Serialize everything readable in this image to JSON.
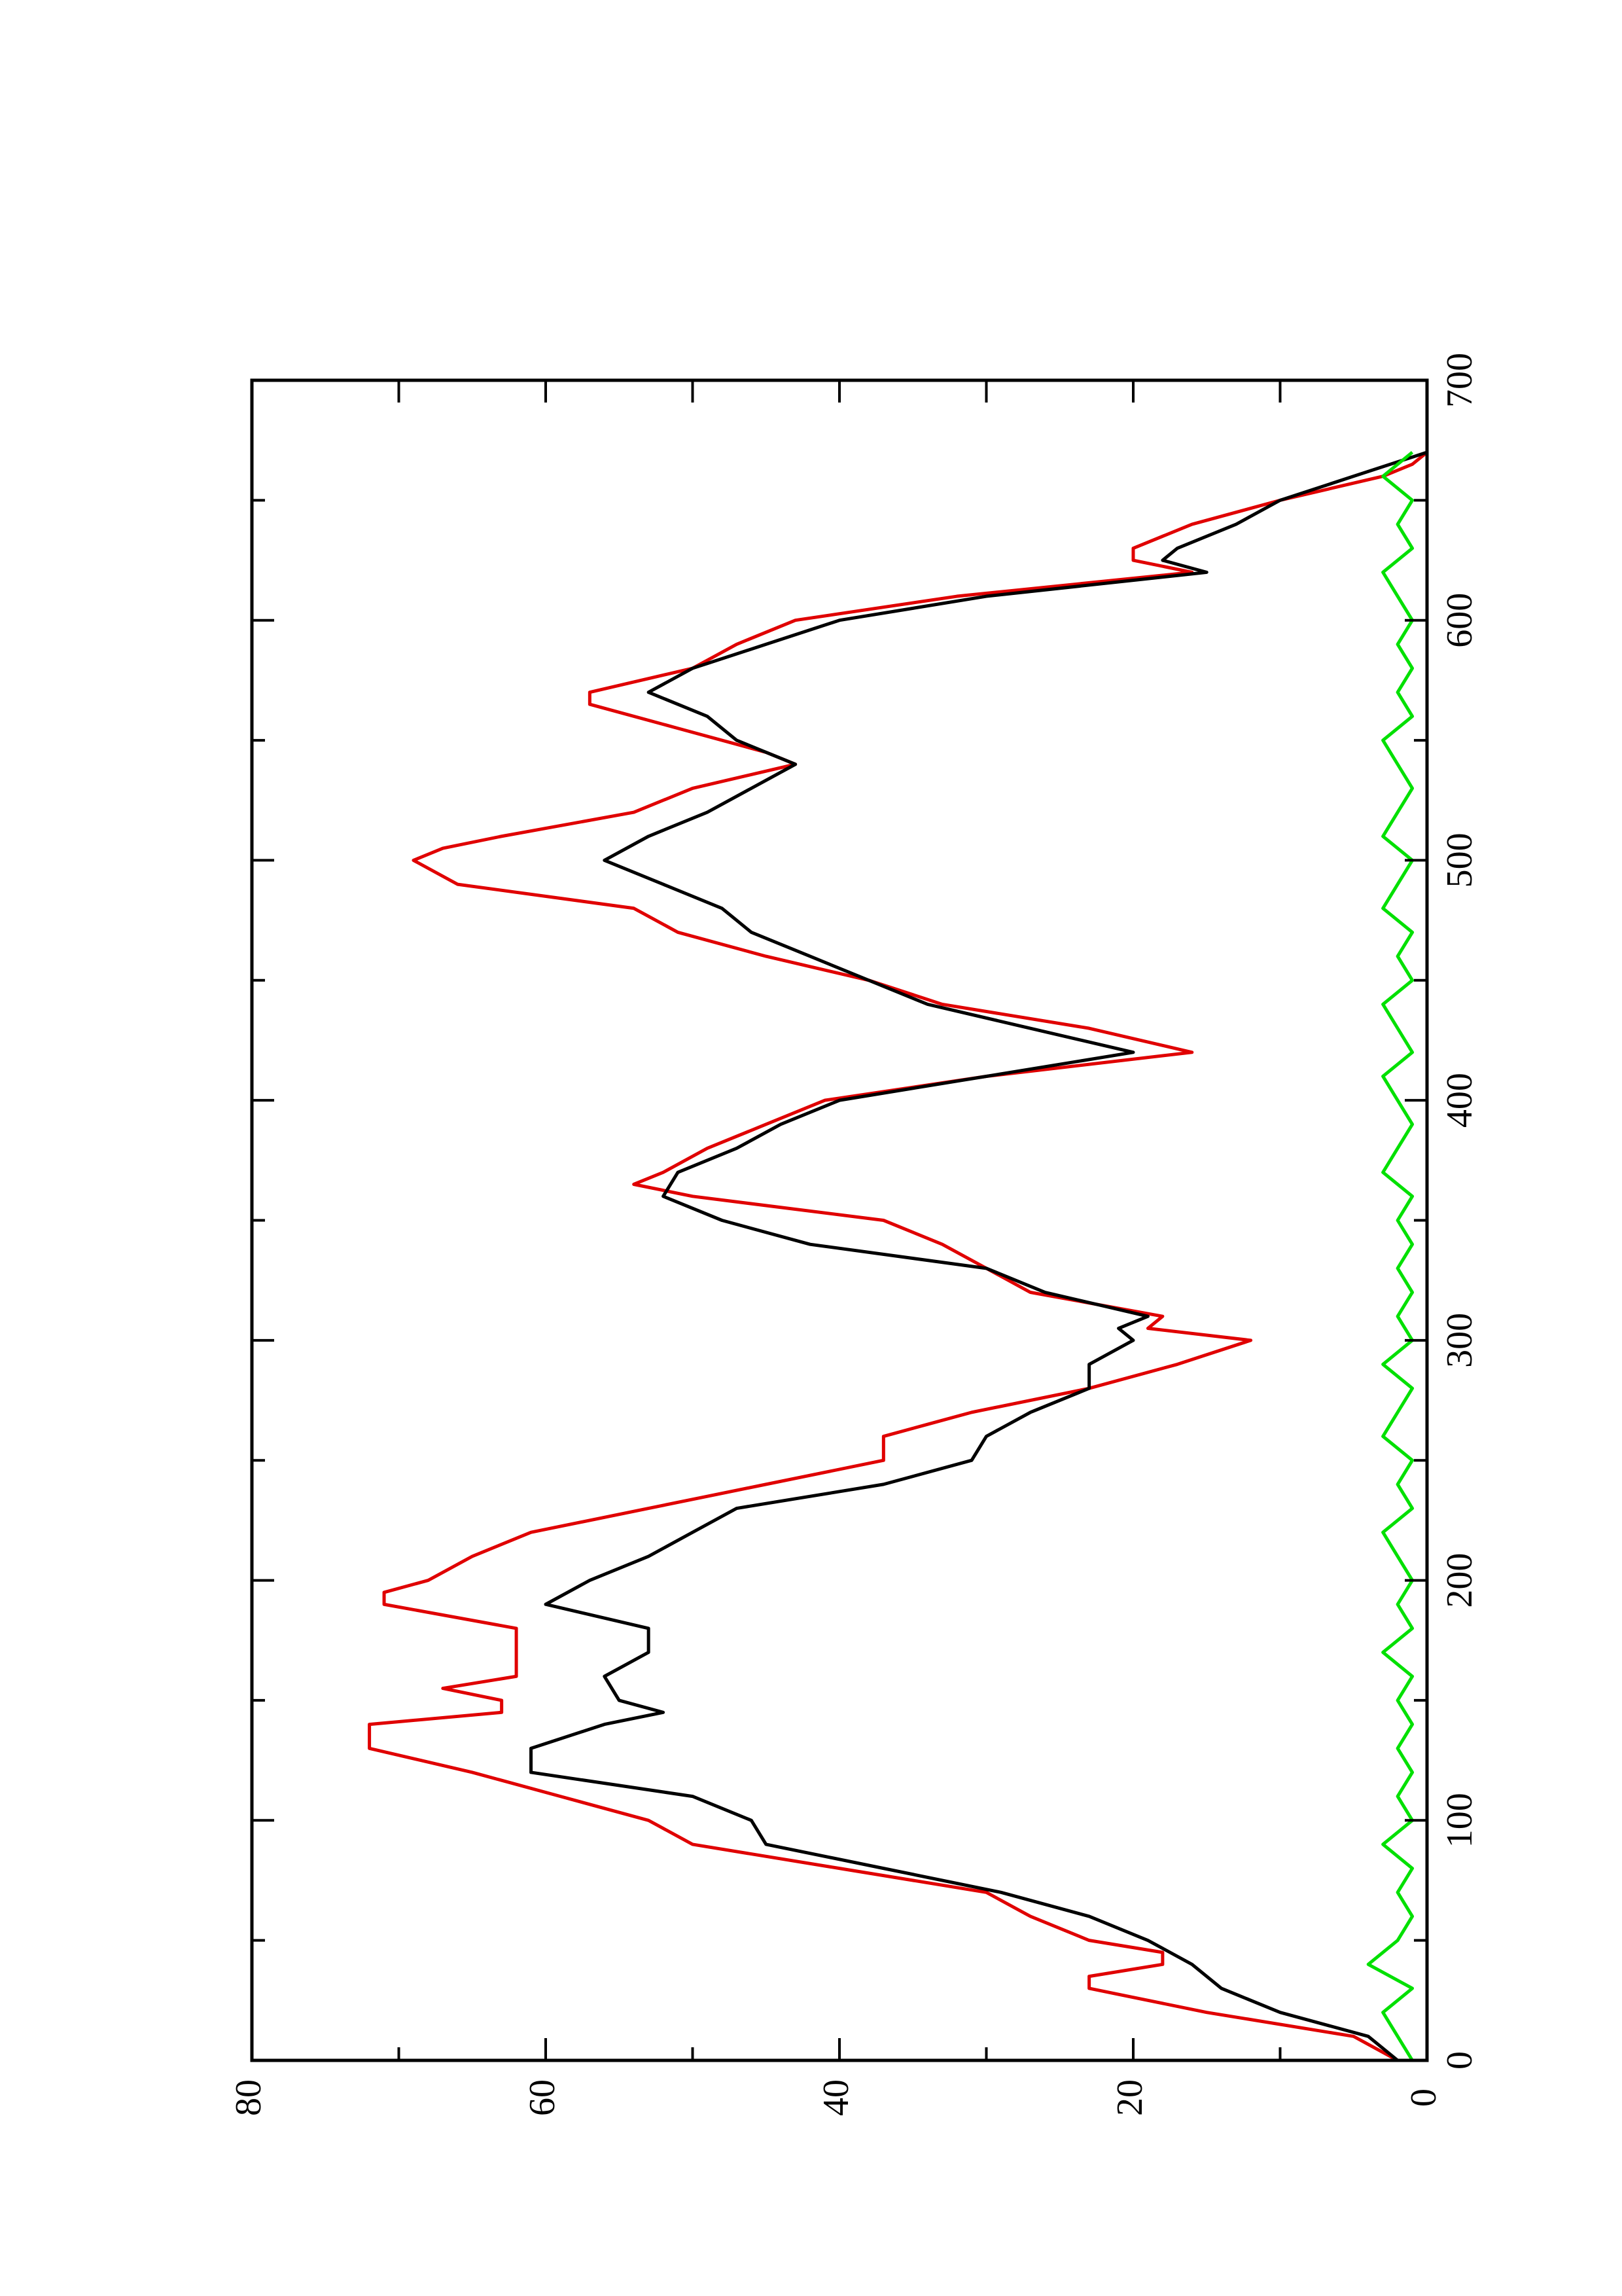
{
  "chart_data": {
    "type": "line",
    "xlim": [
      0,
      700
    ],
    "xticks": [
      0,
      100,
      200,
      300,
      400,
      500,
      600,
      700
    ],
    "ylim": [
      0,
      80
    ],
    "yticks": [
      0,
      20,
      40,
      60,
      80
    ],
    "rotated": true,
    "series": [
      {
        "color": "#e00000",
        "x": [
          0,
          10,
          20,
          30,
          35,
          40,
          45,
          50,
          60,
          70,
          80,
          90,
          100,
          110,
          120,
          130,
          140,
          145,
          150,
          155,
          160,
          170,
          180,
          190,
          195,
          200,
          210,
          220,
          230,
          240,
          250,
          260,
          265,
          270,
          280,
          290,
          300,
          305,
          310,
          320,
          330,
          340,
          350,
          360,
          365,
          370,
          380,
          390,
          400,
          410,
          420,
          430,
          440,
          450,
          460,
          470,
          480,
          490,
          500,
          505,
          510,
          520,
          530,
          540,
          545,
          555,
          565,
          570,
          580,
          590,
          600,
          610,
          620,
          625,
          630,
          640,
          650,
          660,
          665,
          670
        ],
        "values": [
          2,
          5,
          15,
          23,
          23,
          18,
          18,
          23,
          27,
          30,
          40,
          50,
          53,
          59,
          65,
          72,
          72,
          63,
          63,
          67,
          62,
          62,
          62,
          71,
          71,
          68,
          65,
          61,
          53,
          45,
          37,
          37,
          34,
          31,
          23,
          17,
          12,
          19,
          18,
          27,
          30,
          33,
          37,
          50,
          54,
          52,
          49,
          45,
          41,
          30,
          16,
          23,
          33,
          38,
          45,
          51,
          54,
          66,
          69,
          67,
          63,
          54,
          50,
          43,
          45,
          51,
          57,
          57,
          50,
          47,
          43,
          32,
          16,
          20,
          20,
          16,
          10,
          3,
          1,
          0
        ]
      },
      {
        "color": "#000000",
        "x": [
          0,
          10,
          20,
          30,
          40,
          50,
          60,
          70,
          80,
          90,
          100,
          110,
          120,
          130,
          140,
          145,
          150,
          160,
          170,
          180,
          190,
          200,
          210,
          220,
          230,
          240,
          250,
          260,
          270,
          280,
          290,
          300,
          305,
          310,
          320,
          330,
          340,
          350,
          360,
          370,
          380,
          390,
          400,
          410,
          420,
          430,
          440,
          450,
          460,
          470,
          480,
          490,
          500,
          510,
          520,
          530,
          540,
          550,
          560,
          570,
          580,
          590,
          600,
          610,
          620,
          625,
          630,
          640,
          650,
          660,
          670
        ],
        "values": [
          2,
          4,
          10,
          14,
          16,
          19,
          23,
          29,
          37,
          45,
          46,
          50,
          61,
          61,
          56,
          52,
          55,
          56,
          53,
          53,
          60,
          57,
          53,
          50,
          47,
          37,
          31,
          30,
          27,
          23,
          23,
          20,
          21,
          19,
          26,
          30,
          42,
          48,
          52,
          51,
          47,
          44,
          40,
          30,
          20,
          27,
          34,
          38,
          42,
          46,
          48,
          52,
          56,
          53,
          49,
          46,
          43,
          47,
          49,
          53,
          50,
          45,
          40,
          30,
          15,
          18,
          17,
          13,
          10,
          5,
          0
        ]
      },
      {
        "color": "#00e000",
        "x": [
          0,
          10,
          20,
          30,
          40,
          50,
          60,
          70,
          80,
          90,
          100,
          110,
          120,
          130,
          140,
          150,
          160,
          170,
          180,
          190,
          200,
          210,
          220,
          230,
          240,
          250,
          260,
          270,
          280,
          290,
          300,
          310,
          320,
          330,
          340,
          350,
          360,
          370,
          380,
          390,
          400,
          410,
          420,
          430,
          440,
          450,
          460,
          470,
          480,
          490,
          500,
          510,
          520,
          530,
          540,
          550,
          560,
          570,
          580,
          590,
          600,
          610,
          620,
          630,
          640,
          650,
          660,
          670
        ],
        "values": [
          1,
          2,
          3,
          1,
          4,
          2,
          1,
          2,
          1,
          3,
          1,
          2,
          1,
          2,
          1,
          2,
          1,
          3,
          1,
          2,
          1,
          2,
          3,
          1,
          2,
          1,
          3,
          2,
          1,
          3,
          1,
          2,
          1,
          2,
          1,
          2,
          1,
          3,
          2,
          1,
          2,
          3,
          1,
          2,
          3,
          1,
          2,
          1,
          3,
          2,
          1,
          3,
          2,
          1,
          2,
          3,
          1,
          2,
          1,
          2,
          1,
          2,
          3,
          1,
          2,
          1,
          3,
          1
        ]
      }
    ]
  }
}
